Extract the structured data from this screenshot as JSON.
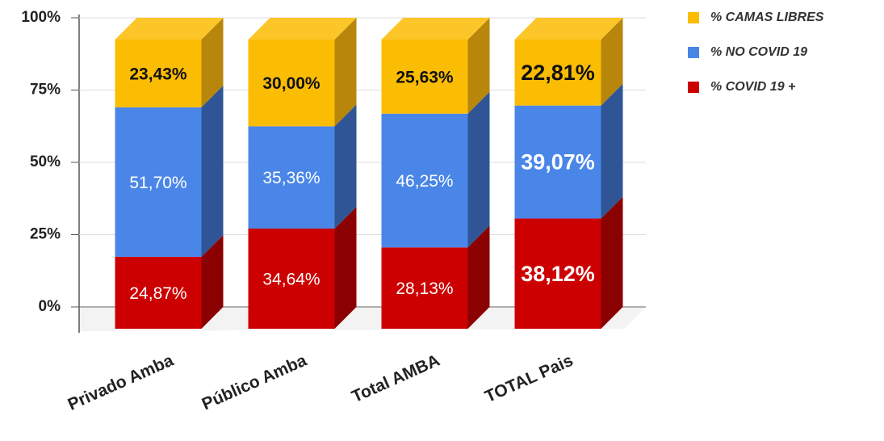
{
  "chart_data": {
    "type": "bar3d_stacked",
    "categories": [
      "Privado Amba",
      "Público Amba",
      "Total AMBA",
      "TOTAL Pais"
    ],
    "series": [
      {
        "name": "% COVID 19 +",
        "color": "#cc0000",
        "side": "#8b0000",
        "values": [
          24.87,
          34.64,
          28.13,
          38.12
        ],
        "value_labels": [
          "24,87%",
          "34,64%",
          "28,13%",
          "38,12%"
        ]
      },
      {
        "name": "% NO COVID 19",
        "color": "#4a86e8",
        "side": "#2f5597",
        "values": [
          51.7,
          35.36,
          46.25,
          39.07
        ],
        "value_labels": [
          "51,70%",
          "35,36%",
          "46,25%",
          "39,07%"
        ]
      },
      {
        "name": "% CAMAS LIBRES",
        "color": "#fbbc04",
        "side": "#b8860b",
        "values": [
          23.43,
          30.0,
          25.63,
          22.81
        ],
        "value_labels": [
          "23,43%",
          "30,00%",
          "25,63%",
          "22,81%"
        ]
      }
    ],
    "ylim": [
      0,
      100
    ],
    "yticks": [
      {
        "value": 0,
        "label": "0%"
      },
      {
        "value": 25,
        "label": "25%"
      },
      {
        "value": 50,
        "label": "50%"
      },
      {
        "value": 75,
        "label": "75%"
      },
      {
        "value": 100,
        "label": "100%"
      }
    ],
    "grid": true,
    "legend": "top-right"
  }
}
